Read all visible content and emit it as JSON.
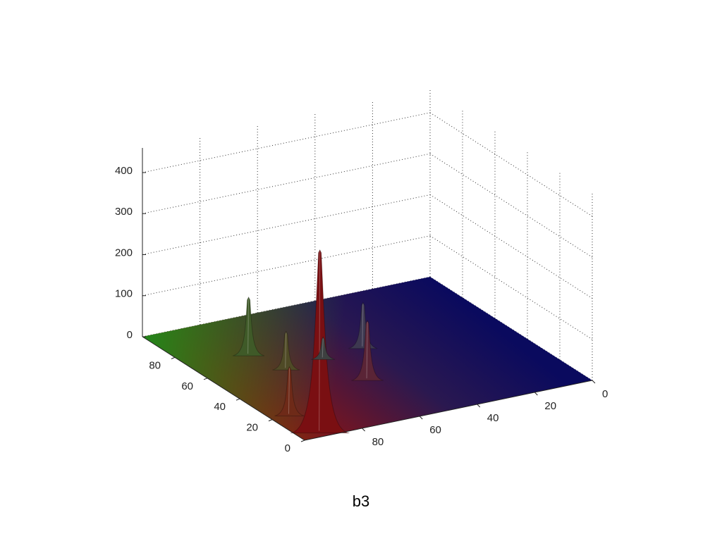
{
  "chart_data": {
    "type": "surface3d",
    "xlim": [
      0,
      100
    ],
    "ylim": [
      0,
      100
    ],
    "zlim": [
      0,
      460
    ],
    "xticks": [
      0,
      20,
      40,
      60,
      80
    ],
    "yticks": [
      0,
      20,
      40,
      60,
      80
    ],
    "zticks": [
      0,
      100,
      200,
      300,
      400
    ],
    "grid": true,
    "peaks": [
      {
        "x": 93,
        "y": 3,
        "z": 446,
        "color": "#7a0f12"
      },
      {
        "x": 80,
        "y": 70,
        "z": 143,
        "color": "#3f5a28"
      },
      {
        "x": 76,
        "y": 54,
        "z": 94,
        "color": "#4f4a26"
      },
      {
        "x": 94,
        "y": 20,
        "z": 120,
        "color": "#6e2a18"
      },
      {
        "x": 47,
        "y": 58,
        "z": 112,
        "color": "#3d3850"
      },
      {
        "x": 59,
        "y": 34,
        "z": 146,
        "color": "#5a2436"
      },
      {
        "x": 62,
        "y": 56,
        "z": 55,
        "color": "#3d4040"
      }
    ]
  },
  "caption": "b3"
}
